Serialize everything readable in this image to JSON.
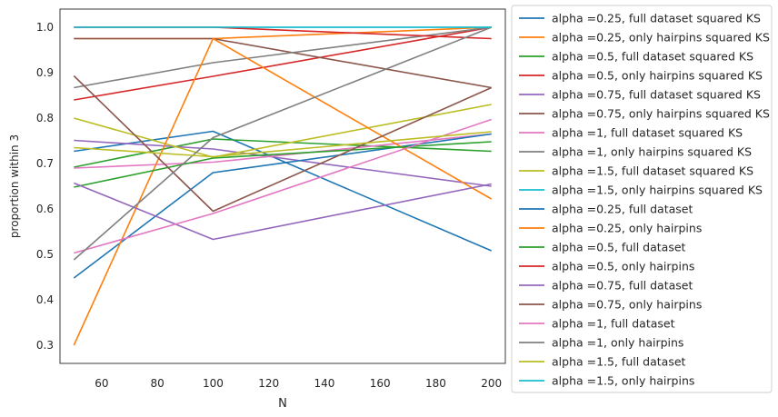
{
  "chart_data": {
    "type": "line",
    "title": "",
    "xlabel": "N",
    "ylabel": "proportion within 3",
    "xlim": [
      45,
      205
    ],
    "ylim": [
      0.26,
      1.04
    ],
    "xticks": [
      60,
      80,
      100,
      120,
      140,
      160,
      180,
      200
    ],
    "yticks": [
      0.3,
      0.4,
      0.5,
      0.6,
      0.7,
      0.8,
      0.9,
      1.0
    ],
    "xtick_labels": [
      "60",
      "80",
      "100",
      "120",
      "140",
      "160",
      "180",
      "200"
    ],
    "ytick_labels": [
      "0.3",
      "0.4",
      "0.5",
      "0.6",
      "0.7",
      "0.8",
      "0.9",
      "1.0"
    ],
    "grid": false,
    "legend_position": "outside-right",
    "x": [
      50,
      100,
      200
    ],
    "series": [
      {
        "name": "alpha =0.25, full dataset squared KS",
        "color": "#1f77b4",
        "values": [
          0.727,
          0.771,
          0.508
        ]
      },
      {
        "name": "alpha =0.25, only hairpins squared KS",
        "color": "#ff7f0e",
        "values": [
          0.975,
          0.975,
          1.0
        ]
      },
      {
        "name": "alpha =0.5, full dataset squared KS",
        "color": "#2ca02c",
        "values": [
          0.692,
          0.754,
          0.727
        ]
      },
      {
        "name": "alpha =0.5, only hairpins squared KS",
        "color": "#d62728",
        "values": [
          0.84,
          0.892,
          1.0
        ]
      },
      {
        "name": "alpha =0.75, full dataset squared KS",
        "color": "#9467bd",
        "values": [
          0.751,
          0.732,
          0.65
        ]
      },
      {
        "name": "alpha =0.75, only hairpins squared KS",
        "color": "#8c564b",
        "values": [
          0.975,
          0.975,
          0.867
        ]
      },
      {
        "name": "alpha =1, full dataset squared KS",
        "color": "#e377c2",
        "values": [
          0.69,
          0.703,
          0.765
        ]
      },
      {
        "name": "alpha =1, only hairpins squared KS",
        "color": "#7f7f7f",
        "values": [
          0.867,
          0.922,
          1.0
        ]
      },
      {
        "name": "alpha =1.5, full dataset squared KS",
        "color": "#bcbd22",
        "values": [
          0.8,
          0.714,
          0.83
        ]
      },
      {
        "name": "alpha =1.5, only hairpins squared KS",
        "color": "#17becf",
        "values": [
          1.0,
          1.0,
          1.0
        ]
      },
      {
        "name": "alpha =0.25, full dataset",
        "color": "#1f77b4",
        "values": [
          0.448,
          0.68,
          0.765
        ]
      },
      {
        "name": "alpha =0.25, only hairpins",
        "color": "#ff7f0e",
        "values": [
          0.3,
          0.975,
          0.622
        ]
      },
      {
        "name": "alpha =0.5, full dataset",
        "color": "#2ca02c",
        "values": [
          0.648,
          0.712,
          0.748
        ]
      },
      {
        "name": "alpha =0.5, only hairpins",
        "color": "#d62728",
        "values": [
          1.0,
          1.0,
          0.975
        ]
      },
      {
        "name": "alpha =0.75, full dataset",
        "color": "#9467bd",
        "values": [
          0.657,
          0.533,
          0.655
        ]
      },
      {
        "name": "alpha =0.75, only hairpins",
        "color": "#8c564b",
        "values": [
          0.893,
          0.595,
          0.867
        ]
      },
      {
        "name": "alpha =1, full dataset",
        "color": "#e377c2",
        "values": [
          0.503,
          0.59,
          0.797
        ]
      },
      {
        "name": "alpha =1, only hairpins",
        "color": "#7f7f7f",
        "values": [
          0.488,
          0.757,
          1.0
        ]
      },
      {
        "name": "alpha =1.5, full dataset",
        "color": "#bcbd22",
        "values": [
          0.735,
          0.715,
          0.77
        ]
      },
      {
        "name": "alpha =1.5, only hairpins",
        "color": "#17becf",
        "values": [
          1.0,
          1.0,
          1.0
        ]
      }
    ]
  }
}
